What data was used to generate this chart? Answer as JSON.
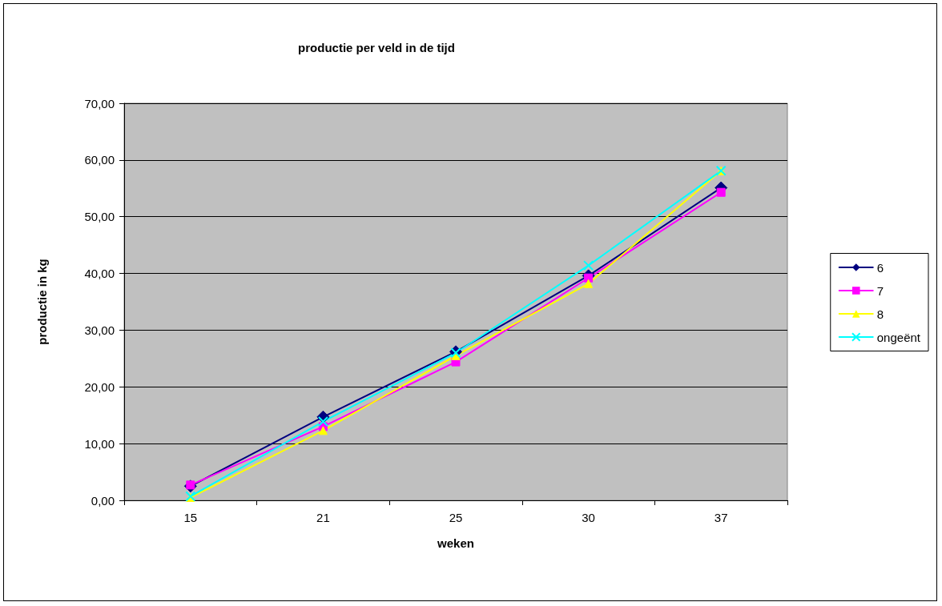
{
  "chart_data": {
    "type": "line",
    "title": "productie per veld in de tijd",
    "xlabel": "weken",
    "ylabel": "productie in kg",
    "categories": [
      "15",
      "21",
      "25",
      "30",
      "37"
    ],
    "series": [
      {
        "name": "6",
        "color": "#000080",
        "marker": "diamond",
        "values": [
          2.5,
          14.7,
          26.2,
          39.6,
          55.1
        ]
      },
      {
        "name": "7",
        "color": "#ff00ff",
        "marker": "square",
        "values": [
          2.7,
          13.0,
          24.4,
          39.2,
          54.3
        ]
      },
      {
        "name": "8",
        "color": "#ffff00",
        "marker": "triangle",
        "values": [
          0.5,
          12.3,
          25.5,
          38.2,
          58.1
        ]
      },
      {
        "name": "ongeënt",
        "color": "#00ffff",
        "marker": "cross",
        "values": [
          0.7,
          13.9,
          26.0,
          41.4,
          58.1
        ]
      }
    ],
    "ylim": [
      0,
      70
    ],
    "yticks": [
      {
        "value": 0,
        "label": "0,00"
      },
      {
        "value": 10,
        "label": "10,00"
      },
      {
        "value": 20,
        "label": "20,00"
      },
      {
        "value": 30,
        "label": "30,00"
      },
      {
        "value": 40,
        "label": "40,00"
      },
      {
        "value": 50,
        "label": "50,00"
      },
      {
        "value": 60,
        "label": "60,00"
      },
      {
        "value": 70,
        "label": "70,00"
      }
    ],
    "grid": "y",
    "legend": "right",
    "line_style": "solid"
  }
}
